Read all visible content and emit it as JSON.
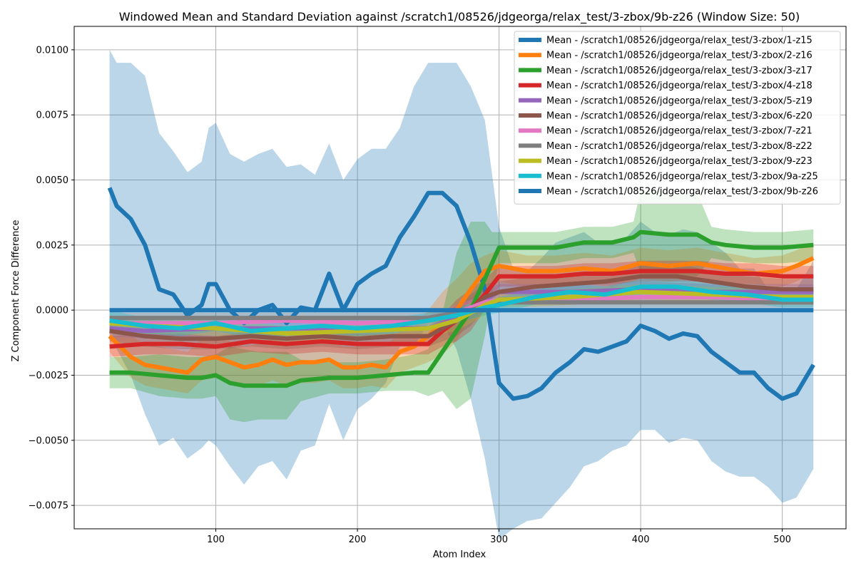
{
  "chart_data": {
    "type": "line",
    "title": "Windowed Mean and Standard Deviation against /scratch1/08526/jdgeorga/relax_test/3-zbox/9b-z26 (Window Size: 50)",
    "xlabel": "Atom Index",
    "ylabel": "Z Component Force Difference",
    "xlim": [
      0,
      545
    ],
    "ylim": [
      -0.0084,
      0.0109
    ],
    "x_ticks": [
      100,
      200,
      300,
      400,
      500
    ],
    "y_ticks": [
      -0.0075,
      -0.005,
      -0.0025,
      0.0,
      0.0025,
      0.005,
      0.0075,
      0.01
    ],
    "x_tick_labels": [
      "100",
      "200",
      "300",
      "400",
      "500"
    ],
    "y_tick_labels": [
      "−0.0075",
      "−0.0050",
      "−0.0025",
      "0.0000",
      "0.0025",
      "0.0050",
      "0.0075",
      "0.0100"
    ],
    "grid": true,
    "legend_position": "top-right",
    "series": [
      {
        "name": "Mean - /scratch1/08526/jdgeorga/relax_test/3-zbox/1-z15",
        "color": "#1f77b4",
        "x": [
          25,
          30,
          40,
          50,
          60,
          70,
          80,
          90,
          95,
          100,
          110,
          120,
          130,
          140,
          150,
          160,
          170,
          180,
          190,
          200,
          210,
          220,
          230,
          240,
          250,
          260,
          270,
          280,
          290,
          300,
          310,
          320,
          330,
          340,
          350,
          360,
          370,
          380,
          390,
          400,
          410,
          420,
          430,
          440,
          450,
          460,
          470,
          480,
          490,
          500,
          510,
          522
        ],
        "y": [
          0.0047,
          0.004,
          0.0035,
          0.0025,
          0.0008,
          0.0006,
          -0.0002,
          0.0002,
          0.001,
          0.001,
          0.0,
          -0.0005,
          0.0,
          0.0002,
          -0.0005,
          0.0001,
          0.0,
          0.0014,
          0.0,
          0.001,
          0.0014,
          0.0017,
          0.0028,
          0.0036,
          0.0045,
          0.0045,
          0.004,
          0.0026,
          0.0008,
          -0.0028,
          -0.0034,
          -0.0033,
          -0.003,
          -0.0024,
          -0.002,
          -0.0015,
          -0.0016,
          -0.0014,
          -0.0012,
          -0.0006,
          -0.0008,
          -0.0011,
          -0.0009,
          -0.001,
          -0.0016,
          -0.002,
          -0.0024,
          -0.0024,
          -0.003,
          -0.0034,
          -0.0032,
          -0.0021
        ],
        "std": [
          0.0053,
          0.0055,
          0.006,
          0.0065,
          0.006,
          0.0055,
          0.0055,
          0.0055,
          0.006,
          0.0062,
          0.006,
          0.0062,
          0.006,
          0.006,
          0.006,
          0.0055,
          0.0052,
          0.005,
          0.005,
          0.0048,
          0.0048,
          0.0045,
          0.0042,
          0.005,
          0.005,
          0.005,
          0.0055,
          0.006,
          0.0065,
          0.006,
          0.005,
          0.0048,
          0.005,
          0.005,
          0.0048,
          0.0045,
          0.0042,
          0.004,
          0.004,
          0.004,
          0.0038,
          0.004,
          0.004,
          0.004,
          0.0042,
          0.0042,
          0.004,
          0.004,
          0.0038,
          0.004,
          0.004,
          0.004
        ]
      },
      {
        "name": "Mean - /scratch1/08526/jdgeorga/relax_test/3-zbox/2-z16",
        "color": "#ff7f0e",
        "x": [
          25,
          40,
          50,
          60,
          70,
          80,
          90,
          100,
          110,
          120,
          130,
          140,
          150,
          160,
          170,
          180,
          190,
          200,
          210,
          220,
          230,
          240,
          250,
          260,
          270,
          280,
          290,
          300,
          320,
          340,
          360,
          380,
          400,
          420,
          440,
          460,
          480,
          500,
          510,
          522
        ],
        "y": [
          -0.001,
          -0.0018,
          -0.0021,
          -0.0022,
          -0.0023,
          -0.0024,
          -0.0019,
          -0.0018,
          -0.002,
          -0.0022,
          -0.0021,
          -0.0019,
          -0.0021,
          -0.002,
          -0.002,
          -0.0019,
          -0.0022,
          -0.0022,
          -0.0021,
          -0.0022,
          -0.0016,
          -0.0014,
          -0.001,
          -0.0005,
          0.0,
          0.0008,
          0.0015,
          0.0017,
          0.0015,
          0.0015,
          0.0016,
          0.0015,
          0.0018,
          0.0017,
          0.0018,
          0.0016,
          0.0014,
          0.0015,
          0.0017,
          0.002
        ],
        "std": [
          0.0006,
          0.0008,
          0.0008,
          0.0008,
          0.0008,
          0.0008,
          0.0008,
          0.0008,
          0.0008,
          0.0008,
          0.0008,
          0.0008,
          0.0008,
          0.0008,
          0.0008,
          0.0008,
          0.0008,
          0.0008,
          0.0008,
          0.0008,
          0.0008,
          0.0008,
          0.001,
          0.0012,
          0.0012,
          0.001,
          0.0006,
          0.0006,
          0.0006,
          0.0006,
          0.0006,
          0.0006,
          0.0006,
          0.0006,
          0.0006,
          0.0006,
          0.0006,
          0.0006,
          0.0006,
          0.0006
        ]
      },
      {
        "name": "Mean - /scratch1/08526/jdgeorga/relax_test/3-zbox/3-z17",
        "color": "#2ca02c",
        "x": [
          25,
          40,
          60,
          80,
          90,
          100,
          110,
          120,
          130,
          140,
          150,
          160,
          180,
          200,
          220,
          240,
          250,
          260,
          270,
          280,
          290,
          295,
          300,
          320,
          340,
          360,
          380,
          395,
          400,
          420,
          440,
          450,
          460,
          480,
          500,
          522
        ],
        "y": [
          -0.0024,
          -0.0024,
          -0.0025,
          -0.0026,
          -0.0026,
          -0.0025,
          -0.0028,
          -0.0029,
          -0.0029,
          -0.0029,
          -0.0029,
          -0.0027,
          -0.0026,
          -0.0026,
          -0.0025,
          -0.0024,
          -0.0024,
          -0.0016,
          -0.0008,
          0.0,
          0.0012,
          0.0018,
          0.0024,
          0.0024,
          0.0024,
          0.0026,
          0.0026,
          0.0028,
          0.003,
          0.0029,
          0.0029,
          0.0026,
          0.0025,
          0.0024,
          0.0024,
          0.0025
        ],
        "std": [
          0.0006,
          0.0006,
          0.0008,
          0.0008,
          0.0008,
          0.0008,
          0.0014,
          0.0014,
          0.0013,
          0.0013,
          0.0013,
          0.0008,
          0.0006,
          0.0006,
          0.0006,
          0.0007,
          0.0009,
          0.0015,
          0.003,
          0.0034,
          0.0022,
          0.0012,
          0.0006,
          0.0006,
          0.0006,
          0.0006,
          0.0006,
          0.0006,
          0.0016,
          0.0016,
          0.0016,
          0.0006,
          0.0006,
          0.0006,
          0.0006,
          0.0006
        ]
      },
      {
        "name": "Mean - /scratch1/08526/jdgeorga/relax_test/3-zbox/4-z18",
        "color": "#d62728",
        "x": [
          25,
          50,
          75,
          100,
          125,
          150,
          175,
          200,
          225,
          250,
          260,
          270,
          280,
          290,
          300,
          320,
          340,
          360,
          380,
          400,
          420,
          440,
          460,
          480,
          500,
          522
        ],
        "y": [
          -0.0014,
          -0.0013,
          -0.0013,
          -0.0014,
          -0.0012,
          -0.0013,
          -0.0012,
          -0.0013,
          -0.0013,
          -0.0013,
          -0.0008,
          -0.0004,
          0.0,
          0.0006,
          0.0013,
          0.0013,
          0.0013,
          0.0014,
          0.0014,
          0.0015,
          0.0015,
          0.0015,
          0.0014,
          0.0014,
          0.0013,
          0.0013
        ],
        "std": [
          0.0004,
          0.0004,
          0.0004,
          0.0004,
          0.0004,
          0.0004,
          0.0004,
          0.0004,
          0.0004,
          0.0004,
          0.0006,
          0.0008,
          0.0008,
          0.0006,
          0.0004,
          0.0004,
          0.0004,
          0.0004,
          0.0004,
          0.0004,
          0.0004,
          0.0004,
          0.0004,
          0.0004,
          0.0004,
          0.0004
        ]
      },
      {
        "name": "Mean - /scratch1/08526/jdgeorga/relax_test/3-zbox/5-z19",
        "color": "#9467bd",
        "x": [
          25,
          50,
          100,
          150,
          200,
          250,
          270,
          290,
          300,
          350,
          400,
          450,
          500,
          522
        ],
        "y": [
          -0.0007,
          -0.0008,
          -0.0007,
          -0.0007,
          -0.0007,
          -0.0007,
          -0.0003,
          0.0004,
          0.0007,
          0.0007,
          0.0008,
          0.0007,
          0.0007,
          0.0007
        ],
        "std": [
          0.0003,
          0.0003,
          0.0003,
          0.0003,
          0.0003,
          0.0003,
          0.0004,
          0.0004,
          0.0003,
          0.0003,
          0.0003,
          0.0003,
          0.0003,
          0.0003
        ]
      },
      {
        "name": "Mean - /scratch1/08526/jdgeorga/relax_test/3-zbox/6-z20",
        "color": "#8c564b",
        "x": [
          25,
          50,
          75,
          100,
          125,
          150,
          175,
          200,
          225,
          250,
          260,
          270,
          280,
          290,
          300,
          325,
          350,
          375,
          400,
          425,
          450,
          475,
          500,
          522
        ],
        "y": [
          -0.0008,
          -0.001,
          -0.0011,
          -0.0011,
          -0.001,
          -0.0011,
          -0.001,
          -0.0011,
          -0.001,
          -0.001,
          -0.0007,
          -0.0004,
          0.0,
          0.0005,
          0.0007,
          0.0009,
          0.001,
          0.0011,
          0.0013,
          0.0013,
          0.0011,
          0.0009,
          0.0008,
          0.0008
        ],
        "std": [
          0.0004,
          0.0004,
          0.0004,
          0.0004,
          0.0004,
          0.0004,
          0.0004,
          0.0004,
          0.0004,
          0.0004,
          0.0005,
          0.0006,
          0.0006,
          0.0005,
          0.0004,
          0.0004,
          0.0004,
          0.0004,
          0.0004,
          0.0005,
          0.0004,
          0.0004,
          0.0004,
          0.0004
        ]
      },
      {
        "name": "Mean - /scratch1/08526/jdgeorga/relax_test/3-zbox/7-z21",
        "color": "#e377c2",
        "x": [
          25,
          50,
          100,
          150,
          200,
          250,
          270,
          290,
          300,
          350,
          400,
          450,
          500,
          522
        ],
        "y": [
          -0.0005,
          -0.0005,
          -0.0005,
          -0.0004,
          -0.0005,
          -0.0004,
          -0.0001,
          0.0003,
          0.0004,
          0.0004,
          0.0005,
          0.0005,
          0.0004,
          0.0004
        ],
        "std": [
          0.0002,
          0.0002,
          0.0002,
          0.0002,
          0.0002,
          0.0002,
          0.0003,
          0.0003,
          0.0002,
          0.0002,
          0.0002,
          0.0002,
          0.0002,
          0.0002
        ]
      },
      {
        "name": "Mean - /scratch1/08526/jdgeorga/relax_test/3-zbox/8-z22",
        "color": "#7f7f7f",
        "x": [
          25,
          100,
          200,
          250,
          280,
          300,
          400,
          522
        ],
        "y": [
          -0.0003,
          -0.0003,
          -0.0003,
          -0.0003,
          0.0,
          0.0003,
          0.0003,
          0.0003
        ],
        "std": [
          0.0002,
          0.0002,
          0.0002,
          0.0002,
          0.0002,
          0.0002,
          0.0002,
          0.0002
        ]
      },
      {
        "name": "Mean - /scratch1/08526/jdgeorga/relax_test/3-zbox/9-z23",
        "color": "#bcbd22",
        "x": [
          25,
          50,
          100,
          150,
          200,
          250,
          270,
          290,
          300,
          350,
          400,
          450,
          500,
          522
        ],
        "y": [
          -0.0005,
          -0.0006,
          -0.0007,
          -0.0009,
          -0.0008,
          -0.0007,
          -0.0004,
          0.0002,
          0.0004,
          0.0005,
          0.0007,
          0.0006,
          0.0005,
          0.0005
        ],
        "std": [
          0.0003,
          0.0003,
          0.0003,
          0.0003,
          0.0003,
          0.0003,
          0.0004,
          0.0004,
          0.0003,
          0.0003,
          0.0003,
          0.0003,
          0.0003,
          0.0003
        ]
      },
      {
        "name": "Mean - /scratch1/08526/jdgeorga/relax_test/3-zbox/9a-z25",
        "color": "#17becf",
        "x": [
          25,
          50,
          75,
          100,
          125,
          150,
          175,
          200,
          225,
          250,
          270,
          290,
          300,
          325,
          350,
          375,
          400,
          425,
          450,
          475,
          500,
          522
        ],
        "y": [
          -0.0004,
          -0.0006,
          -0.0007,
          -0.0005,
          -0.0008,
          -0.0007,
          -0.0006,
          -0.0007,
          -0.0006,
          -0.0004,
          -0.0002,
          0.0001,
          0.0002,
          0.0005,
          0.0007,
          0.0006,
          0.0009,
          0.0009,
          0.0007,
          0.0006,
          0.0004,
          0.0004
        ],
        "std": [
          0.0004,
          0.0003,
          0.0003,
          0.0003,
          0.0003,
          0.0003,
          0.0003,
          0.0003,
          0.0003,
          0.0003,
          0.0003,
          0.0003,
          0.0003,
          0.0003,
          0.0003,
          0.0003,
          0.0003,
          0.0003,
          0.0003,
          0.0003,
          0.0003,
          0.0003
        ]
      },
      {
        "name": "Mean - /scratch1/08526/jdgeorga/relax_test/3-zbox/9b-z26",
        "color": "#1f77b4",
        "x": [
          25,
          522
        ],
        "y": [
          0.0,
          0.0
        ],
        "std": [
          0.0,
          0.0
        ]
      }
    ]
  }
}
